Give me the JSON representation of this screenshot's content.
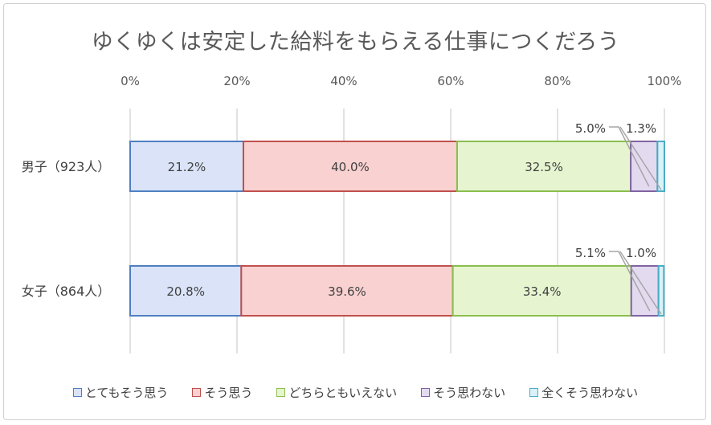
{
  "chart_data": {
    "type": "bar",
    "orientation": "horizontal",
    "stacked": true,
    "title": "ゆくゆくは安定した給料をもらえる仕事につくだろう",
    "categories": [
      "男子（923人）",
      "女子（864人）"
    ],
    "xlim": [
      0,
      100
    ],
    "x_ticks": [
      "0%",
      "20%",
      "40%",
      "60%",
      "80%",
      "100%"
    ],
    "x_tick_values": [
      0,
      20,
      40,
      60,
      80,
      100
    ],
    "grid": true,
    "legend_position": "bottom",
    "series": [
      {
        "name": "とてもそう思う",
        "values": [
          21.2,
          20.8
        ],
        "labels": [
          "21.2%",
          "20.8%"
        ],
        "fill": "#dae3f8",
        "stroke": "#4f7fc1"
      },
      {
        "name": "そう思う",
        "values": [
          40.0,
          39.6
        ],
        "labels": [
          "40.0%",
          "39.6%"
        ],
        "fill": "#f9d1d1",
        "stroke": "#c0504d"
      },
      {
        "name": "どちらともいえない",
        "values": [
          32.5,
          33.4
        ],
        "labels": [
          "32.5%",
          "33.4%"
        ],
        "fill": "#e6f5d0",
        "stroke": "#8cbd4f"
      },
      {
        "name": "そう思わない",
        "values": [
          5.0,
          5.1
        ],
        "labels": [
          "5.0%",
          "5.1%"
        ],
        "fill": "#e3daf0",
        "stroke": "#8064a2"
      },
      {
        "name": "全くそう思わない",
        "values": [
          1.3,
          1.0
        ],
        "labels": [
          "1.3%",
          "1.0%"
        ],
        "fill": "#d9f1f8",
        "stroke": "#4bacc6"
      }
    ]
  }
}
